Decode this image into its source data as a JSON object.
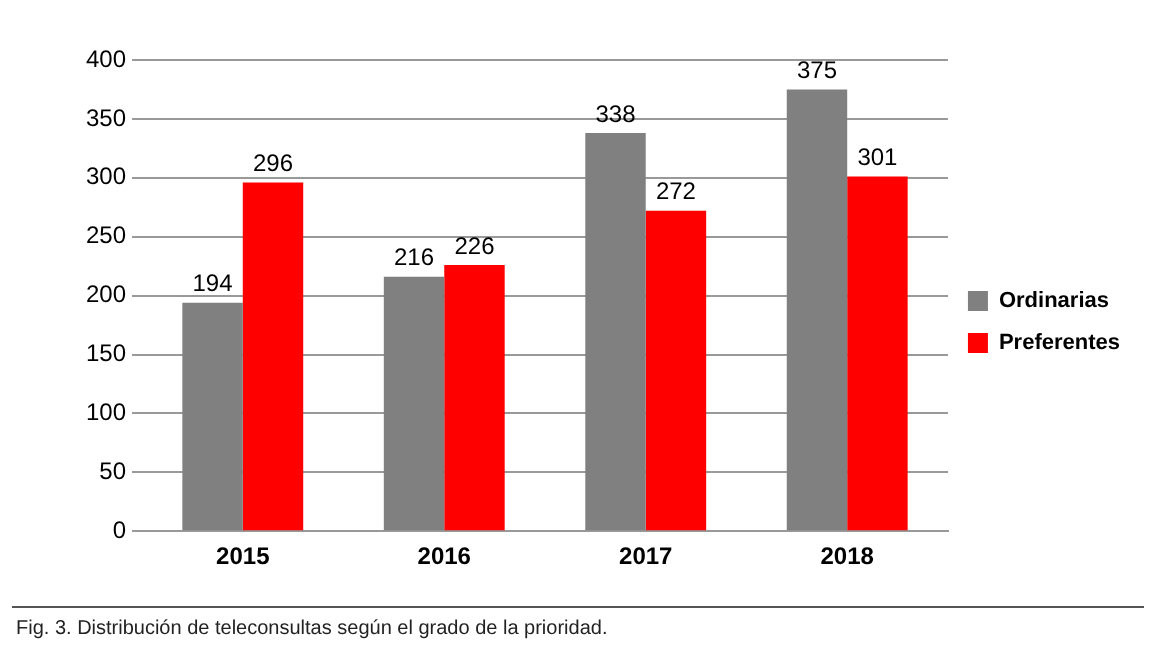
{
  "chart_data": {
    "type": "bar",
    "categories": [
      "2015",
      "2016",
      "2017",
      "2018"
    ],
    "series": [
      {
        "name": "Ordinarias",
        "color": "#808080",
        "values": [
          194,
          216,
          338,
          375
        ]
      },
      {
        "name": "Preferentes",
        "color": "#ff0000",
        "values": [
          296,
          226,
          272,
          301
        ]
      }
    ],
    "ylim": [
      0,
      400
    ],
    "yticks": [
      0,
      50,
      100,
      150,
      200,
      250,
      300,
      350,
      400
    ],
    "grid": "y",
    "legend": "right",
    "data_labels": true,
    "annotations": [
      "Fig. 3.  Distribución de teleconsultas según el grado de la prioridad."
    ]
  }
}
